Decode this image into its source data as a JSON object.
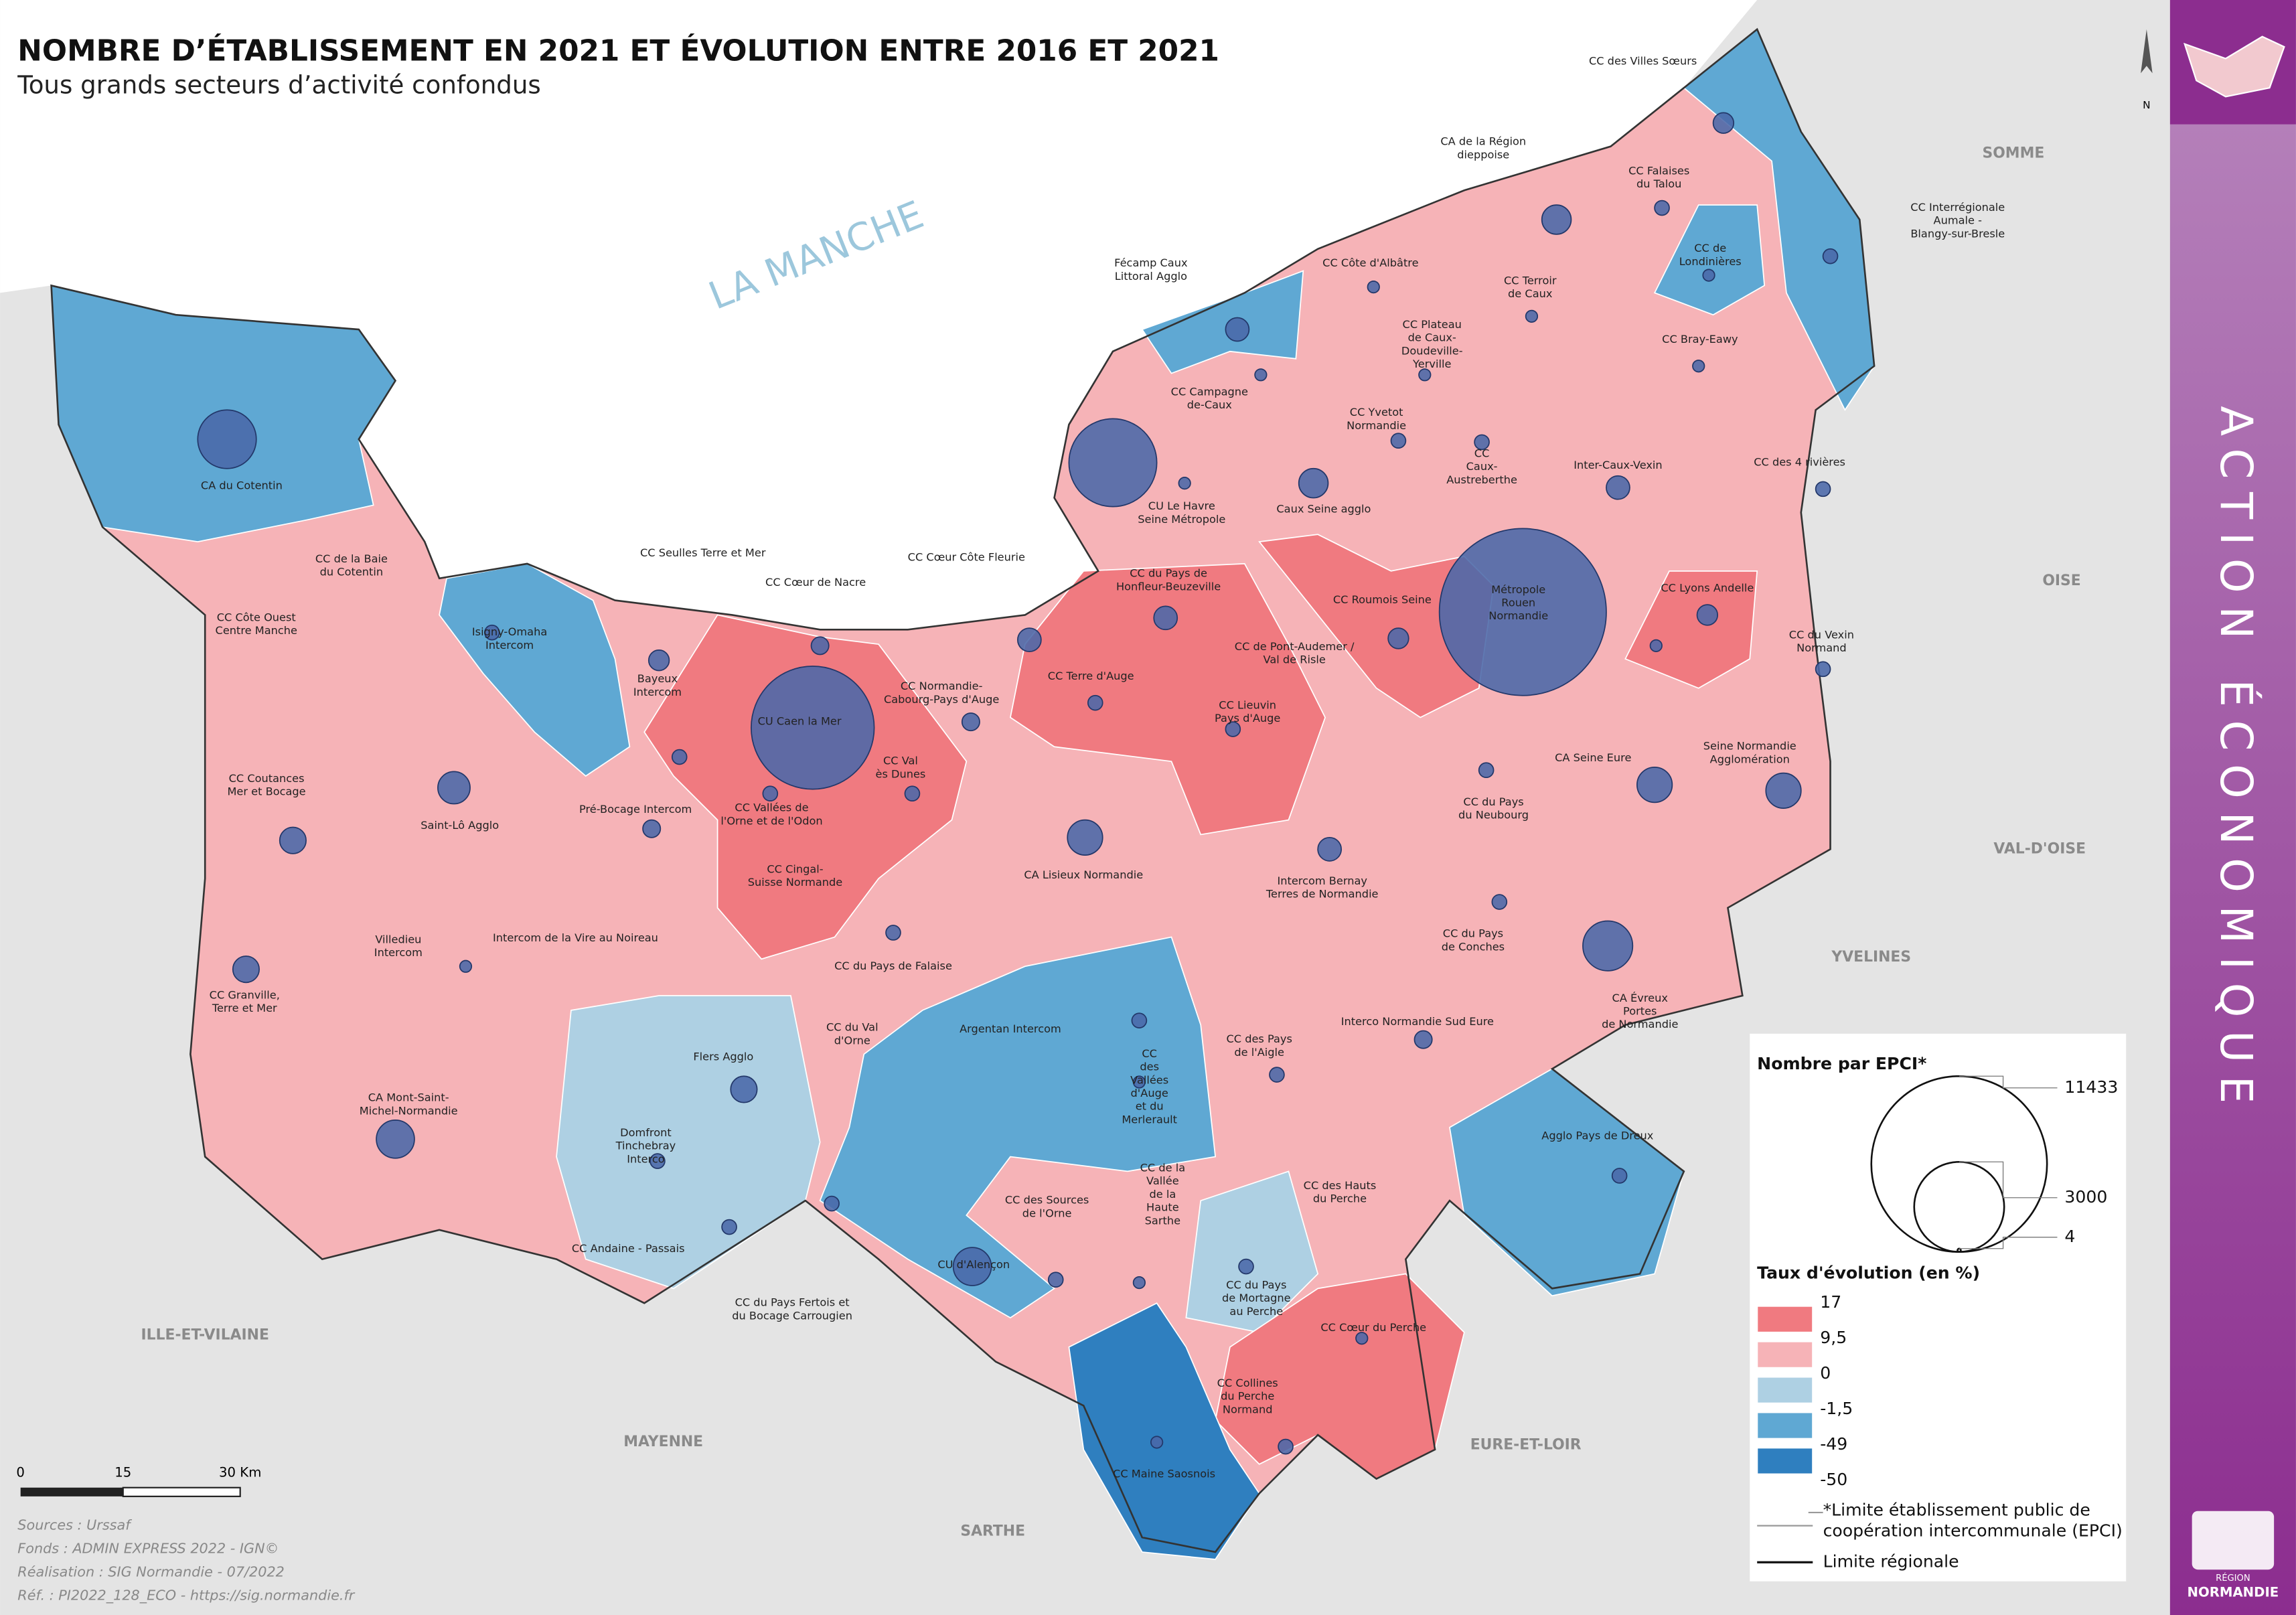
{
  "header": {
    "title": "NOMBRE D’ÉTABLISSEMENT EN 2021 ET ÉVOLUTION ENTRE 2016 ET 2021",
    "subtitle": "Tous grands secteurs d’activité confondus"
  },
  "sea": "LA MANCHE",
  "neighbors": [
    "SOMME",
    "OISE",
    "VAL-D'OISE",
    "YVELINES",
    "EURE-ET-LOIR",
    "SARTHE",
    "MAYENNE",
    "ILLE-ET-VILAINE"
  ],
  "epci": [
    {
      "lines": [
        "CC des Villes Sœurs"
      ]
    },
    {
      "lines": [
        "CA de la Région",
        "dieppoise"
      ]
    },
    {
      "lines": [
        "CC Falaises",
        "du Talou"
      ]
    },
    {
      "lines": [
        "CC Interrégionale",
        "Aumale -",
        "Blangy-sur-Bresle"
      ]
    },
    {
      "lines": [
        "CC de",
        "Londinières"
      ]
    },
    {
      "lines": [
        "CC Côte d'Albâtre"
      ]
    },
    {
      "lines": [
        "CC Terroir",
        "de Caux"
      ]
    },
    {
      "lines": [
        "Fécamp Caux",
        "Littoral Agglo"
      ]
    },
    {
      "lines": [
        "CC Plateau",
        "de Caux-",
        "Doudeville-",
        "Yerville"
      ]
    },
    {
      "lines": [
        "CC Bray-Eawy"
      ]
    },
    {
      "lines": [
        "CC Campagne",
        "de-Caux"
      ]
    },
    {
      "lines": [
        "CC Yvetot",
        "Normandie"
      ]
    },
    {
      "lines": [
        "CC",
        "Caux-",
        "Austreberthe"
      ]
    },
    {
      "lines": [
        "Inter-Caux-Vexin"
      ]
    },
    {
      "lines": [
        "CC des 4 rivières"
      ]
    },
    {
      "lines": [
        "CA du Cotentin"
      ]
    },
    {
      "lines": [
        "CU Le Havre",
        "Seine Métropole"
      ]
    },
    {
      "lines": [
        "Caux Seine agglo"
      ]
    },
    {
      "lines": [
        "CC de la Baie",
        "du Cotentin"
      ]
    },
    {
      "lines": [
        "CC Seulles Terre et Mer"
      ]
    },
    {
      "lines": [
        "CC Cœur Côte Fleurie"
      ]
    },
    {
      "lines": [
        "CC Cœur de Nacre"
      ]
    },
    {
      "lines": [
        "CC du Pays de",
        "Honfleur-Beuzeville"
      ]
    },
    {
      "lines": [
        "CC Roumois Seine"
      ]
    },
    {
      "lines": [
        "Métropole",
        "Rouen",
        "Normandie"
      ]
    },
    {
      "lines": [
        "CC Lyons Andelle"
      ]
    },
    {
      "lines": [
        "CC Côte Ouest",
        "Centre Manche"
      ]
    },
    {
      "lines": [
        "Isigny-Omaha",
        "Intercom"
      ]
    },
    {
      "lines": [
        "CC du Vexin",
        "Normand"
      ]
    },
    {
      "lines": [
        "CC de Pont-Audemer /",
        "Val de Risle"
      ]
    },
    {
      "lines": [
        "Bayeux",
        "Intercom"
      ]
    },
    {
      "lines": [
        "CC Normandie-",
        "Cabourg-Pays d'Auge"
      ]
    },
    {
      "lines": [
        "CC Terre d'Auge"
      ]
    },
    {
      "lines": [
        "CC Lieuvin",
        "Pays d'Auge"
      ]
    },
    {
      "lines": [
        "CU Caen la Mer"
      ]
    },
    {
      "lines": [
        "CC Val",
        "ès Dunes"
      ]
    },
    {
      "lines": [
        "Seine Normandie",
        "Agglomération"
      ]
    },
    {
      "lines": [
        "CA Seine Eure"
      ]
    },
    {
      "lines": [
        "CC Coutances",
        "Mer et Bocage"
      ]
    },
    {
      "lines": [
        "Pré-Bocage Intercom"
      ]
    },
    {
      "lines": [
        "CC Vallées de",
        "l'Orne et de l'Odon"
      ]
    },
    {
      "lines": [
        "CC du Pays",
        "du Neubourg"
      ]
    },
    {
      "lines": [
        "Saint-Lô Agglo"
      ]
    },
    {
      "lines": [
        "CC Cingal-",
        "Suisse Normande"
      ]
    },
    {
      "lines": [
        "CA Lisieux Normandie"
      ]
    },
    {
      "lines": [
        "Intercom Bernay",
        "Terres de Normandie"
      ]
    },
    {
      "lines": [
        "Villedieu",
        "Intercom"
      ]
    },
    {
      "lines": [
        "Intercom de la Vire au Noireau"
      ]
    },
    {
      "lines": [
        "CC du Pays",
        "de Conches"
      ]
    },
    {
      "lines": [
        "CC du Pays de Falaise"
      ]
    },
    {
      "lines": [
        "CA Évreux",
        "Portes",
        "de Normandie"
      ]
    },
    {
      "lines": [
        "CC Granville,",
        "Terre et Mer"
      ]
    },
    {
      "lines": [
        "CC du Val",
        "d'Orne"
      ]
    },
    {
      "lines": [
        "Argentan Intercom"
      ]
    },
    {
      "lines": [
        "Interco Normandie Sud Eure"
      ]
    },
    {
      "lines": [
        "CC des Pays",
        "de l'Aigle"
      ]
    },
    {
      "lines": [
        "Flers Agglo"
      ]
    },
    {
      "lines": [
        "CC",
        "des",
        "Vallées",
        "d'Auge",
        "et du",
        "Merlerault"
      ]
    },
    {
      "lines": [
        "CA Mont-Saint-",
        "Michel-Normandie"
      ]
    },
    {
      "lines": [
        "Agglo Pays de Dreux"
      ]
    },
    {
      "lines": [
        "Domfront",
        "Tinchebray",
        "Interco"
      ]
    },
    {
      "lines": [
        "CC des Hauts",
        "du Perche"
      ]
    },
    {
      "lines": [
        "CC de la",
        "Vallée",
        "de la",
        "Haute",
        "Sarthe"
      ]
    },
    {
      "lines": [
        "CC des Sources",
        "de l'Orne"
      ]
    },
    {
      "lines": [
        "CC Andaine - Passais"
      ]
    },
    {
      "lines": [
        "CU d'Alençon"
      ]
    },
    {
      "lines": [
        "CC du Pays",
        "de Mortagne",
        "au Perche"
      ]
    },
    {
      "lines": [
        "CC du Pays Fertois et",
        "du Bocage Carrougien"
      ]
    },
    {
      "lines": [
        "CC Cœur du Perche"
      ]
    },
    {
      "lines": [
        "CC Collines",
        "du Perche",
        "Normand"
      ]
    },
    {
      "lines": [
        "CC Maine Saosnois"
      ]
    }
  ],
  "legend": {
    "size_title": "Nombre par EPCI*",
    "sizes": [
      11433,
      3000,
      4
    ],
    "rate_title": "Taux d'évolution (en %)",
    "rates": [
      17,
      {
        "value": 9.5,
        "label": "9,5"
      },
      0,
      {
        "value": -1.5,
        "label": "-1,5"
      },
      -49,
      -50
    ],
    "colors": [
      "#f07a80",
      "#f6b3b7",
      "#aed0e3",
      "#5fa8d3",
      "#2f7fbf"
    ],
    "epci_limit": [
      "*Limite établissement public de",
      "coopération intercommunale (EPCI)"
    ],
    "regional_limit": "Limite régionale"
  },
  "scale": [
    "0",
    "15",
    "30 Km"
  ],
  "sources": [
    "Sources : Urssaf",
    "Fonds : ADMIN EXPRESS 2022 - IGN©",
    "Réalisation : SIG Normandie - 07/2022",
    "Réf. : PI2022_128_ECO - https://sig.normandie.fr"
  ],
  "panel": {
    "theme": "ACTION ÉCONOMIQUE",
    "north": "N",
    "logo": [
      "RÉGION",
      "NORMANDIE"
    ]
  }
}
